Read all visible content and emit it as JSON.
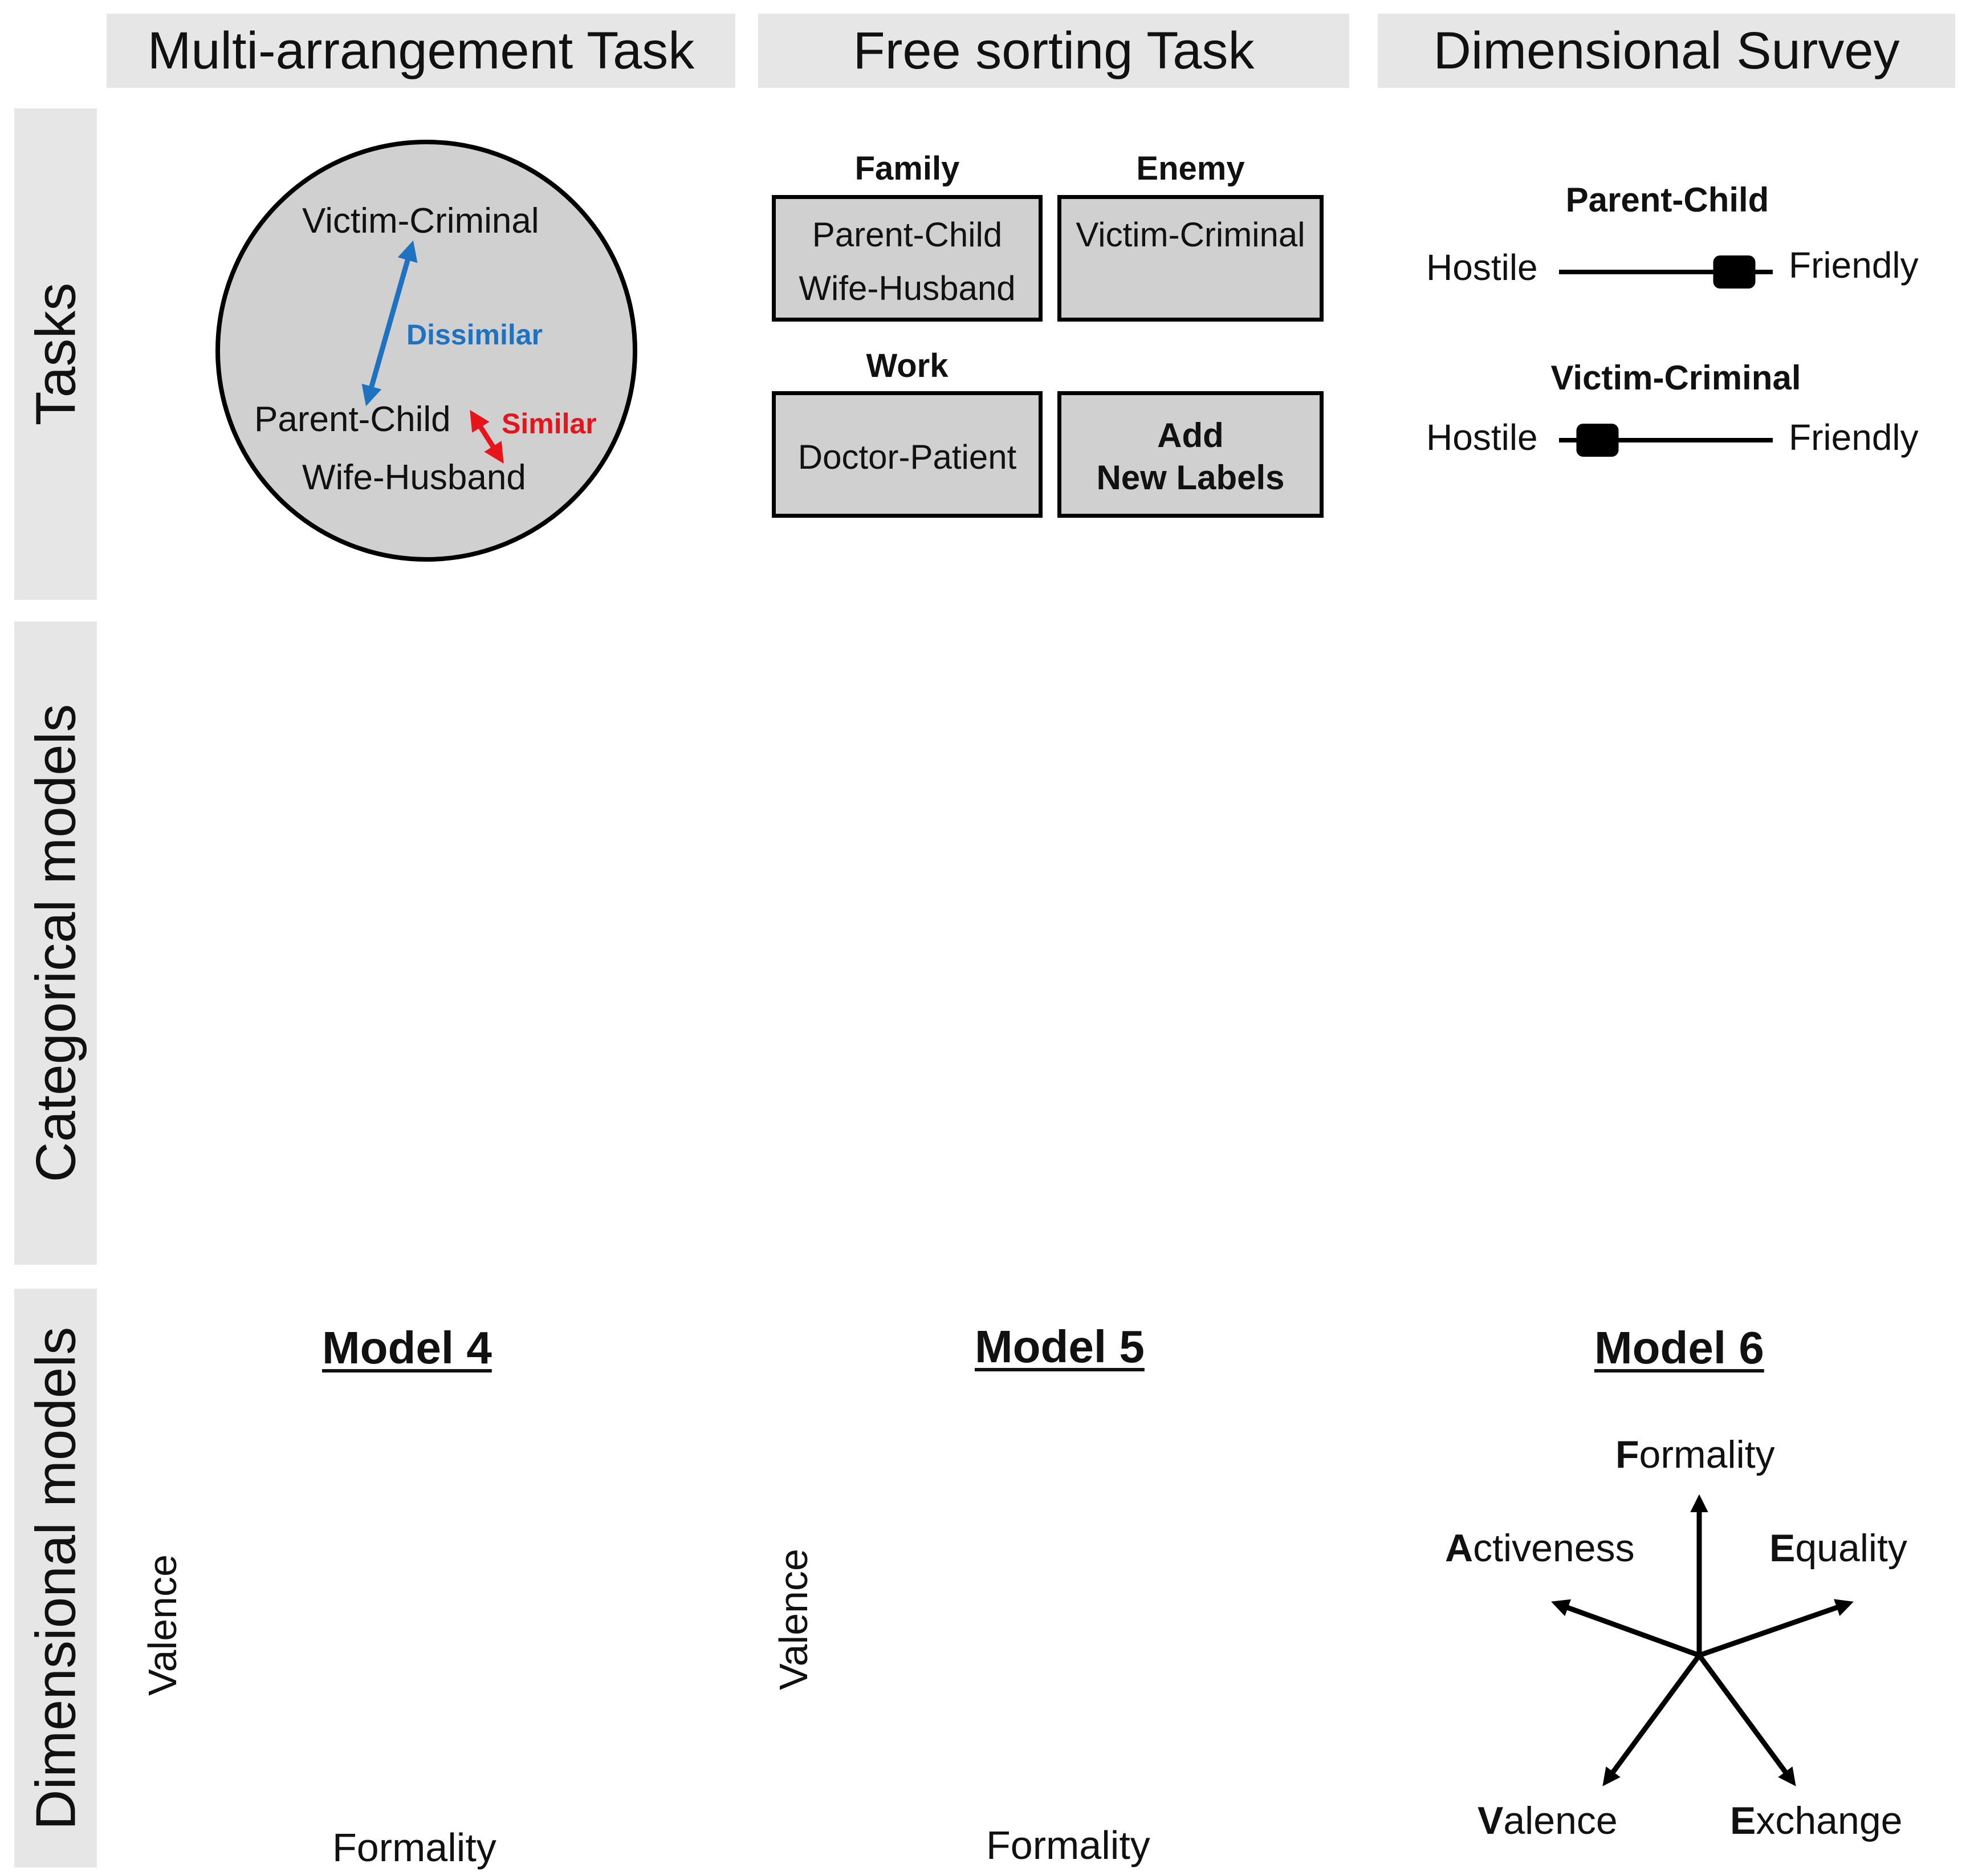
{
  "columns": {
    "multi_arrangement": "Multi-arrangement Task",
    "free_sorting": "Free sorting Task",
    "dimensional_survey": "Dimensional Survey"
  },
  "rows": {
    "tasks": "Tasks",
    "categorical": "Categorical models",
    "dimensional": "Dimensional models"
  },
  "arrangement": {
    "items": [
      "Victim-Criminal",
      "Parent-Child",
      "Wife-Husband"
    ],
    "dissimilar_label": "Dissimilar",
    "similar_label": "Similar",
    "dissimilar_color": "#1e72c0",
    "similar_color": "#e8141c",
    "arena_color": "#d1d0d0"
  },
  "sorting": {
    "groups": [
      {
        "label": "Family",
        "items": [
          "Parent-Child",
          "Wife-Husband"
        ]
      },
      {
        "label": "Enemy",
        "items": [
          "Victim-Criminal"
        ]
      },
      {
        "label": "Work",
        "items": [
          "Doctor-Patient"
        ]
      }
    ],
    "add_labels": [
      "Add",
      "New Labels"
    ]
  },
  "survey": {
    "sliders": [
      {
        "relationship": "Parent-Child",
        "left": "Hostile",
        "right": "Friendly",
        "level": 0.82
      },
      {
        "relationship": "Victim-Criminal",
        "left": "Hostile",
        "right": "Friendly",
        "level": 0.18
      }
    ]
  },
  "models": {
    "model4": {
      "title": "Model 4",
      "xlabel": "Formality",
      "ylabel": "Valence"
    },
    "model5": {
      "title": "Model 5",
      "xlabel": "Formality",
      "ylabel": "Valence"
    },
    "model6": {
      "title": "Model 6",
      "axes": [
        {
          "initial": "F",
          "rest": "ormality"
        },
        {
          "initial": "A",
          "rest": "ctiveness"
        },
        {
          "initial": "E",
          "rest": "quality"
        },
        {
          "initial": "V",
          "rest": "alence"
        },
        {
          "initial": "E",
          "rest": "xchange"
        }
      ]
    }
  }
}
